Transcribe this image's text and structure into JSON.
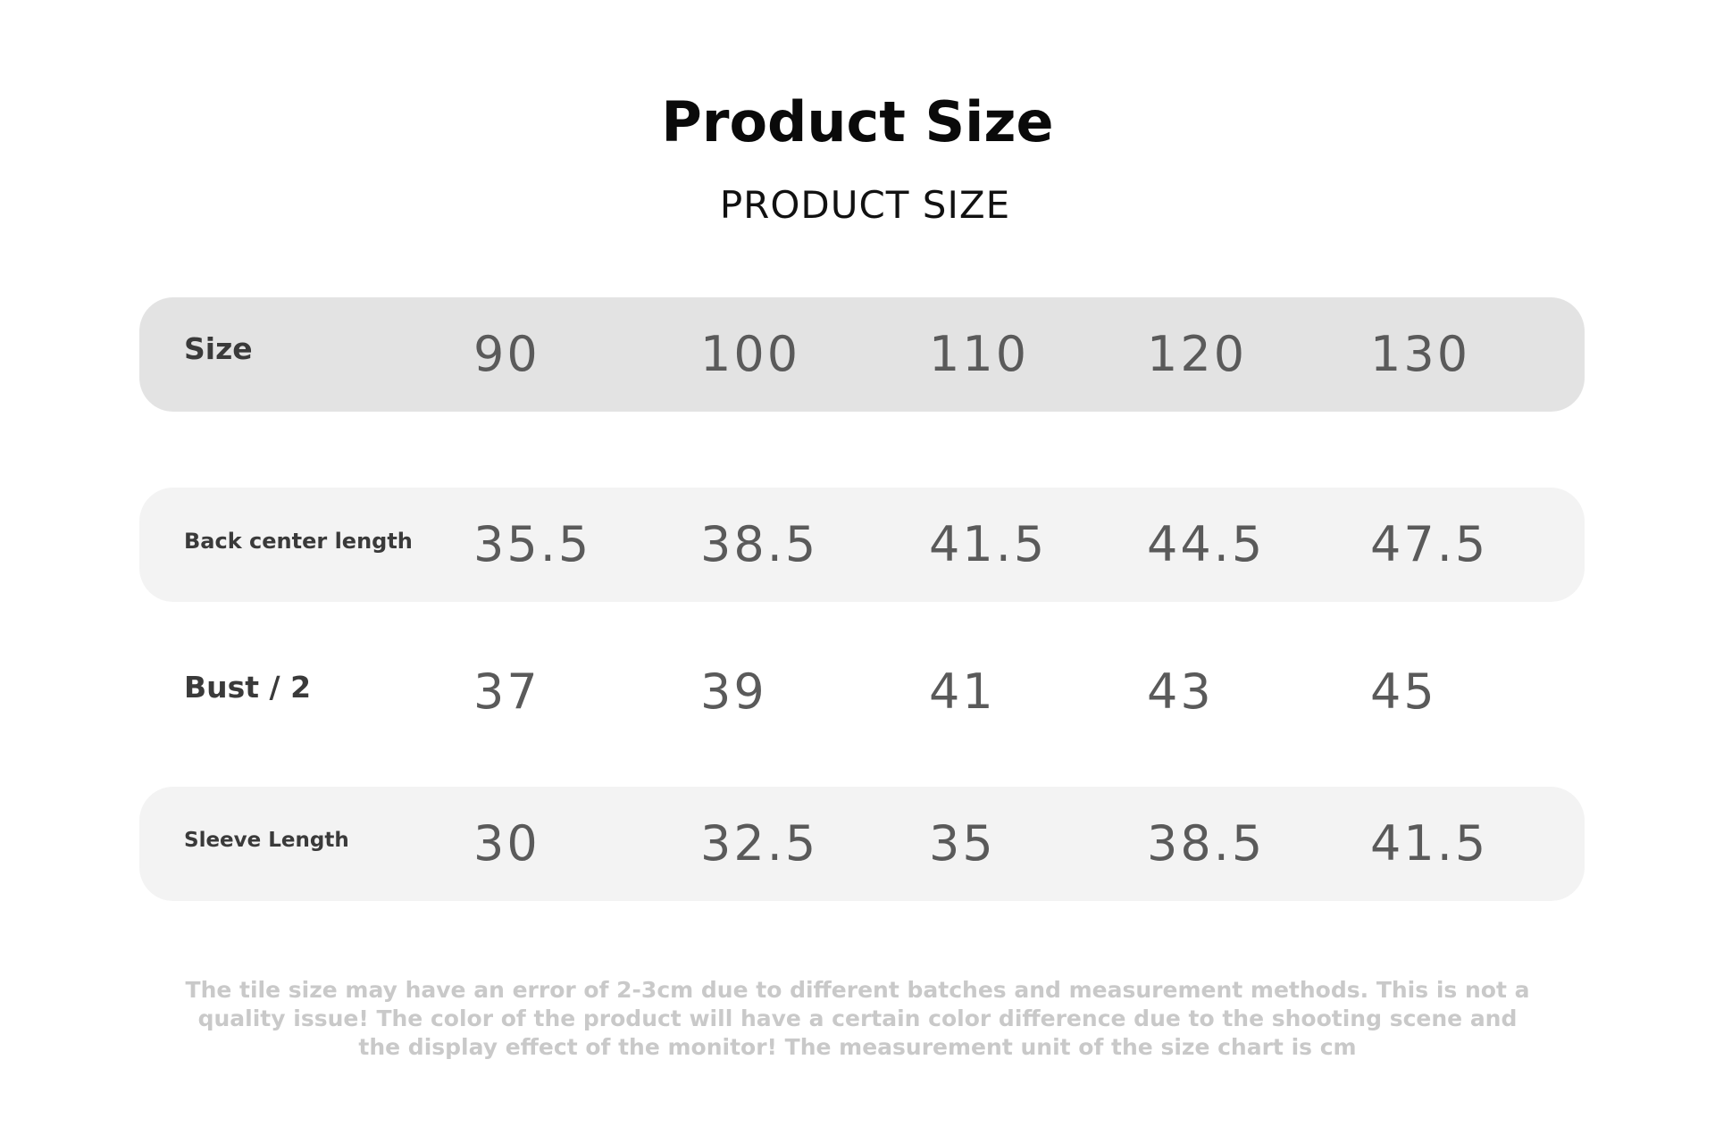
{
  "header": {
    "title": "Product Size",
    "subtitle": "PRODUCT SIZE"
  },
  "size_table": {
    "head": {
      "label": "Size",
      "values": [
        "90",
        "100",
        "110",
        "120",
        "130"
      ]
    },
    "rows": [
      {
        "label": "Back center length",
        "values": [
          "35.5",
          "38.5",
          "41.5",
          "44.5",
          "47.5"
        ]
      },
      {
        "label": "Bust / 2",
        "values": [
          "37",
          "39",
          "41",
          "43",
          "45"
        ]
      },
      {
        "label": "Sleeve Length",
        "values": [
          "30",
          "32.5",
          "35",
          "38.5",
          "41.5"
        ]
      }
    ]
  },
  "note": "The tile size may have an error of 2-3cm due to different batches and measurement methods. This is not a quality issue! The color of the product will have a certain color difference due to the shooting scene and the display effect of the monitor! The measurement unit of the size chart is cm",
  "colors": {
    "head_row_bg": "#e3e3e3",
    "alt_row_bg": "#f3f3f3",
    "value_text": "#5a5a5a",
    "note_text": "#c9c9c9"
  }
}
